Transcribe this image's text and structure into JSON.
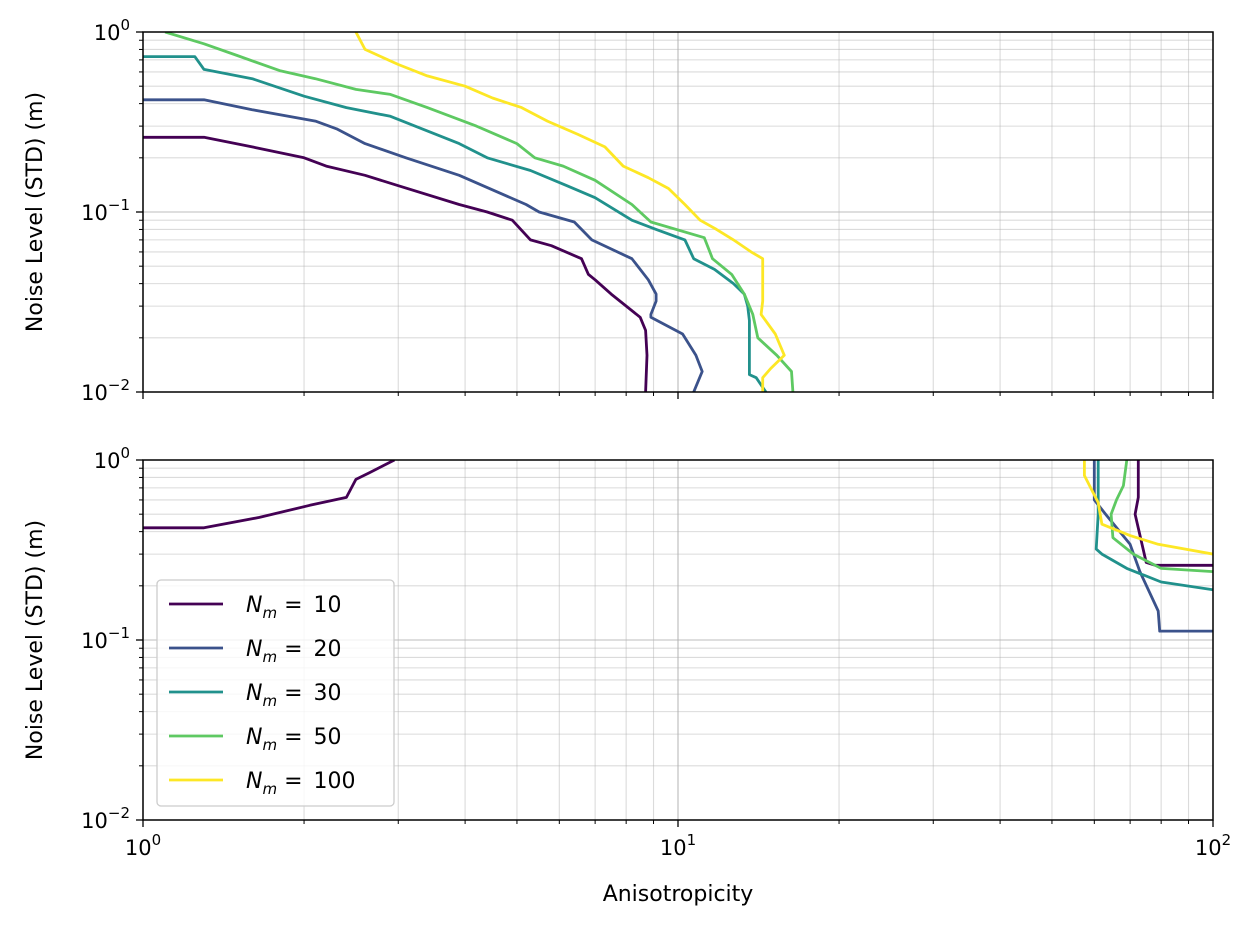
{
  "chart_data": [
    {
      "type": "line",
      "panel": "top",
      "xlabel": "",
      "ylabel": "Noise Level (STD) (m)",
      "xscale": "log",
      "yscale": "log",
      "xlim": [
        1,
        100
      ],
      "ylim": [
        0.01,
        1
      ],
      "grid": "major and minor",
      "x_ticks": [
        {
          "base": "10",
          "exp": "0"
        },
        {
          "base": "10",
          "exp": "1"
        },
        {
          "base": "10",
          "exp": "2"
        }
      ],
      "y_ticks": [
        {
          "base": "10",
          "exp": "−2",
          "value": 0.01
        },
        {
          "base": "10",
          "exp": "−1",
          "value": 0.1
        },
        {
          "base": "10",
          "exp": "0",
          "value": 1
        }
      ],
      "series": [
        {
          "name": "N_m = 10",
          "color": "#440154",
          "points": [
            [
              1.0,
              0.26
            ],
            [
              1.3,
              0.26
            ],
            [
              1.6,
              0.23
            ],
            [
              2.0,
              0.2
            ],
            [
              2.2,
              0.18
            ],
            [
              2.6,
              0.16
            ],
            [
              3.0,
              0.14
            ],
            [
              3.9,
              0.11
            ],
            [
              4.4,
              0.1
            ],
            [
              4.9,
              0.09
            ],
            [
              5.3,
              0.07
            ],
            [
              5.8,
              0.065
            ],
            [
              6.6,
              0.055
            ],
            [
              6.8,
              0.045
            ],
            [
              7.0,
              0.042
            ],
            [
              7.5,
              0.035
            ],
            [
              8.5,
              0.026
            ],
            [
              8.7,
              0.022
            ],
            [
              8.75,
              0.016
            ],
            [
              8.7,
              0.01
            ]
          ]
        },
        {
          "name": "N_m = 20",
          "color": "#3b528b",
          "points": [
            [
              1.0,
              0.42
            ],
            [
              1.3,
              0.42
            ],
            [
              1.6,
              0.37
            ],
            [
              2.1,
              0.32
            ],
            [
              2.3,
              0.29
            ],
            [
              2.6,
              0.24
            ],
            [
              3.1,
              0.2
            ],
            [
              3.9,
              0.16
            ],
            [
              5.2,
              0.11
            ],
            [
              5.5,
              0.1
            ],
            [
              6.4,
              0.088
            ],
            [
              6.9,
              0.07
            ],
            [
              8.2,
              0.055
            ],
            [
              8.8,
              0.042
            ],
            [
              9.1,
              0.035
            ],
            [
              9.1,
              0.032
            ],
            [
              8.9,
              0.027
            ],
            [
              8.9,
              0.026
            ],
            [
              10.2,
              0.021
            ],
            [
              10.8,
              0.016
            ],
            [
              11.1,
              0.013
            ],
            [
              10.7,
              0.01
            ]
          ]
        },
        {
          "name": "N_m = 30",
          "color": "#21918c",
          "points": [
            [
              1.0,
              0.73
            ],
            [
              1.25,
              0.73
            ],
            [
              1.3,
              0.62
            ],
            [
              1.6,
              0.55
            ],
            [
              2.0,
              0.44
            ],
            [
              2.4,
              0.38
            ],
            [
              2.9,
              0.34
            ],
            [
              3.9,
              0.24
            ],
            [
              4.4,
              0.2
            ],
            [
              5.3,
              0.17
            ],
            [
              6.2,
              0.14
            ],
            [
              7.0,
              0.12
            ],
            [
              8.2,
              0.09
            ],
            [
              9.1,
              0.08
            ],
            [
              10.3,
              0.07
            ],
            [
              10.7,
              0.055
            ],
            [
              11.7,
              0.048
            ],
            [
              12.7,
              0.04
            ],
            [
              13.3,
              0.035
            ],
            [
              13.5,
              0.03
            ],
            [
              13.6,
              0.025
            ],
            [
              13.6,
              0.018
            ],
            [
              13.6,
              0.0125
            ],
            [
              14.0,
              0.012
            ],
            [
              14.6,
              0.01
            ]
          ]
        },
        {
          "name": "N_m = 50",
          "color": "#5ec962",
          "points": [
            [
              1.1,
              1.0
            ],
            [
              1.3,
              0.86
            ],
            [
              1.5,
              0.74
            ],
            [
              1.8,
              0.61
            ],
            [
              2.1,
              0.55
            ],
            [
              2.5,
              0.48
            ],
            [
              2.9,
              0.45
            ],
            [
              3.4,
              0.38
            ],
            [
              4.2,
              0.3
            ],
            [
              5.0,
              0.24
            ],
            [
              5.4,
              0.2
            ],
            [
              6.1,
              0.18
            ],
            [
              7.0,
              0.15
            ],
            [
              8.2,
              0.11
            ],
            [
              8.9,
              0.088
            ],
            [
              11.2,
              0.072
            ],
            [
              11.6,
              0.055
            ],
            [
              12.6,
              0.045
            ],
            [
              13.3,
              0.035
            ],
            [
              13.8,
              0.027
            ],
            [
              14.1,
              0.02
            ],
            [
              15.3,
              0.016
            ],
            [
              16.3,
              0.013
            ],
            [
              16.4,
              0.01
            ]
          ]
        },
        {
          "name": "N_m = 100",
          "color": "#fde725",
          "points": [
            [
              2.5,
              1.0
            ],
            [
              2.6,
              0.8
            ],
            [
              3.0,
              0.66
            ],
            [
              3.4,
              0.57
            ],
            [
              4.0,
              0.5
            ],
            [
              4.5,
              0.43
            ],
            [
              5.1,
              0.38
            ],
            [
              5.7,
              0.32
            ],
            [
              6.5,
              0.27
            ],
            [
              7.3,
              0.23
            ],
            [
              7.9,
              0.18
            ],
            [
              8.8,
              0.155
            ],
            [
              9.6,
              0.135
            ],
            [
              10.3,
              0.11
            ],
            [
              11.0,
              0.09
            ],
            [
              11.8,
              0.08
            ],
            [
              12.7,
              0.07
            ],
            [
              13.7,
              0.06
            ],
            [
              14.4,
              0.055
            ],
            [
              14.4,
              0.032
            ],
            [
              14.3,
              0.027
            ],
            [
              15.2,
              0.021
            ],
            [
              15.8,
              0.016
            ],
            [
              14.9,
              0.0135
            ],
            [
              14.4,
              0.012
            ],
            [
              14.4,
              0.01
            ]
          ]
        }
      ]
    },
    {
      "type": "line",
      "panel": "bottom",
      "xlabel": "Anisotropicity",
      "ylabel": "Noise Level (STD) (m)",
      "xscale": "log",
      "yscale": "log",
      "xlim": [
        1,
        100
      ],
      "ylim": [
        0.01,
        1
      ],
      "grid": "major and minor",
      "x_ticks": [
        {
          "base": "10",
          "exp": "0"
        },
        {
          "base": "10",
          "exp": "1"
        },
        {
          "base": "10",
          "exp": "2"
        }
      ],
      "y_ticks": [
        {
          "base": "10",
          "exp": "−2",
          "value": 0.01
        },
        {
          "base": "10",
          "exp": "−1",
          "value": 0.1
        },
        {
          "base": "10",
          "exp": "0",
          "value": 1
        }
      ],
      "legend_position": "lower-left",
      "series": [
        {
          "name": "N_m = 10",
          "color": "#440154",
          "segments": [
            [
              [
                1.0,
                0.42
              ],
              [
                1.3,
                0.42
              ],
              [
                1.65,
                0.48
              ],
              [
                2.05,
                0.56
              ],
              [
                2.4,
                0.62
              ],
              [
                2.5,
                0.78
              ],
              [
                2.65,
                0.85
              ],
              [
                2.95,
                1.0
              ]
            ],
            [
              [
                72.5,
                1.0
              ],
              [
                72.5,
                0.62
              ],
              [
                71.5,
                0.5
              ],
              [
                75,
                0.27
              ],
              [
                78,
                0.26
              ],
              [
                100,
                0.26
              ]
            ]
          ]
        },
        {
          "name": "N_m = 20",
          "color": "#3b528b",
          "segments": [
            [
              [
                60,
                1.0
              ],
              [
                60,
                0.6
              ],
              [
                63,
                0.5
              ],
              [
                70,
                0.34
              ],
              [
                73,
                0.24
              ],
              [
                79,
                0.145
              ],
              [
                79.5,
                0.112
              ],
              [
                100,
                0.112
              ]
            ]
          ]
        },
        {
          "name": "N_m = 30",
          "color": "#21918c",
          "segments": [
            [
              [
                61,
                1.0
              ],
              [
                61,
                0.5
              ],
              [
                60.5,
                0.32
              ],
              [
                62,
                0.3
              ],
              [
                69,
                0.25
              ],
              [
                80,
                0.21
              ],
              [
                100,
                0.19
              ]
            ]
          ]
        },
        {
          "name": "N_m = 50",
          "color": "#5ec962",
          "segments": [
            [
              [
                69,
                1.0
              ],
              [
                68,
                0.72
              ],
              [
                66,
                0.6
              ],
              [
                64.5,
                0.5
              ],
              [
                65,
                0.37
              ],
              [
                71,
                0.3
              ],
              [
                80,
                0.25
              ],
              [
                100,
                0.24
              ]
            ]
          ]
        },
        {
          "name": "N_m = 100",
          "color": "#fde725",
          "segments": [
            [
              [
                57.5,
                1.0
              ],
              [
                57.5,
                0.82
              ],
              [
                61,
                0.58
              ],
              [
                62,
                0.44
              ],
              [
                70,
                0.38
              ],
              [
                79,
                0.34
              ],
              [
                100,
                0.3
              ]
            ]
          ]
        }
      ]
    }
  ],
  "legend": {
    "items": [
      {
        "symbol": "N",
        "sub": "m",
        "value": "10",
        "color": "#440154"
      },
      {
        "symbol": "N",
        "sub": "m",
        "value": "20",
        "color": "#3b528b"
      },
      {
        "symbol": "N",
        "sub": "m",
        "value": "30",
        "color": "#21918c"
      },
      {
        "symbol": "N",
        "sub": "m",
        "value": "50",
        "color": "#5ec962"
      },
      {
        "symbol": "N",
        "sub": "m",
        "value": "100",
        "color": "#fde725"
      }
    ]
  }
}
